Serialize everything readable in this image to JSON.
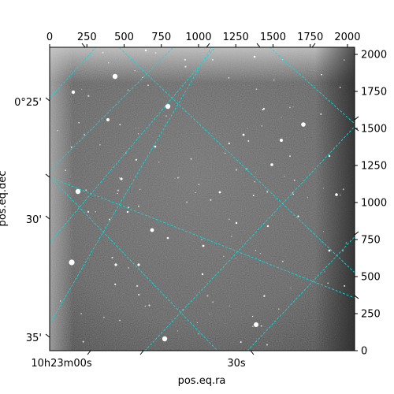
{
  "figure": {
    "xlabel": "pos.eq.ra",
    "ylabel": "pos.eq.dec"
  },
  "pixel_axes": {
    "x_range": [
      0,
      2048
    ],
    "y_range": [
      0,
      2048
    ],
    "top_ticks": [
      0,
      250,
      500,
      750,
      1000,
      1250,
      1500,
      1750,
      2000
    ],
    "right_ticks": [
      0,
      250,
      500,
      750,
      1000,
      1250,
      1500,
      1750,
      2000
    ]
  },
  "world_axes": {
    "left_ticks": [
      "0°25'",
      "30'",
      "35'"
    ],
    "bottom_ticks": [
      "10h23m00s",
      "30s"
    ]
  },
  "colors": {
    "grid": "#00e0e0",
    "frame": "#000000"
  }
}
